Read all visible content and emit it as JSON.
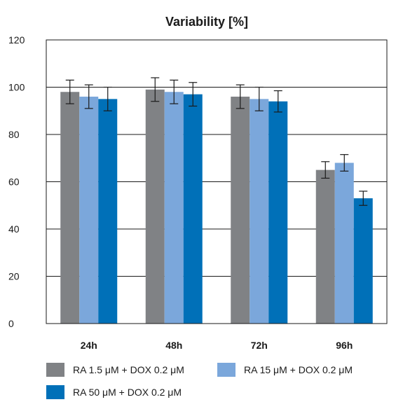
{
  "chart_data": {
    "type": "bar",
    "title": "Variability [%]",
    "xlabel": "",
    "ylabel": "",
    "categories": [
      "24h",
      "48h",
      "72h",
      "96h"
    ],
    "y_ticks": [
      "0",
      "20",
      "40",
      "60",
      "80",
      "100",
      "120"
    ],
    "ylim": [
      0,
      120
    ],
    "grid": true,
    "legend_position": "bottom",
    "series": [
      {
        "name": "RA 1.5 μM + DOX 0.2 μM",
        "color": "#808285",
        "values": [
          98,
          99,
          96,
          65
        ],
        "error": [
          5,
          5,
          5,
          3.5
        ]
      },
      {
        "name": "RA 15 μM + DOX 0.2 μM",
        "color": "#7ba7db",
        "values": [
          96,
          98,
          95,
          68
        ],
        "error": [
          5,
          5,
          5,
          3.5
        ]
      },
      {
        "name": "RA 50 μM + DOX 0.2 μM",
        "color": "#0070b8",
        "values": [
          95,
          97,
          94,
          53
        ],
        "error": [
          5,
          5,
          4.5,
          3
        ]
      }
    ]
  }
}
